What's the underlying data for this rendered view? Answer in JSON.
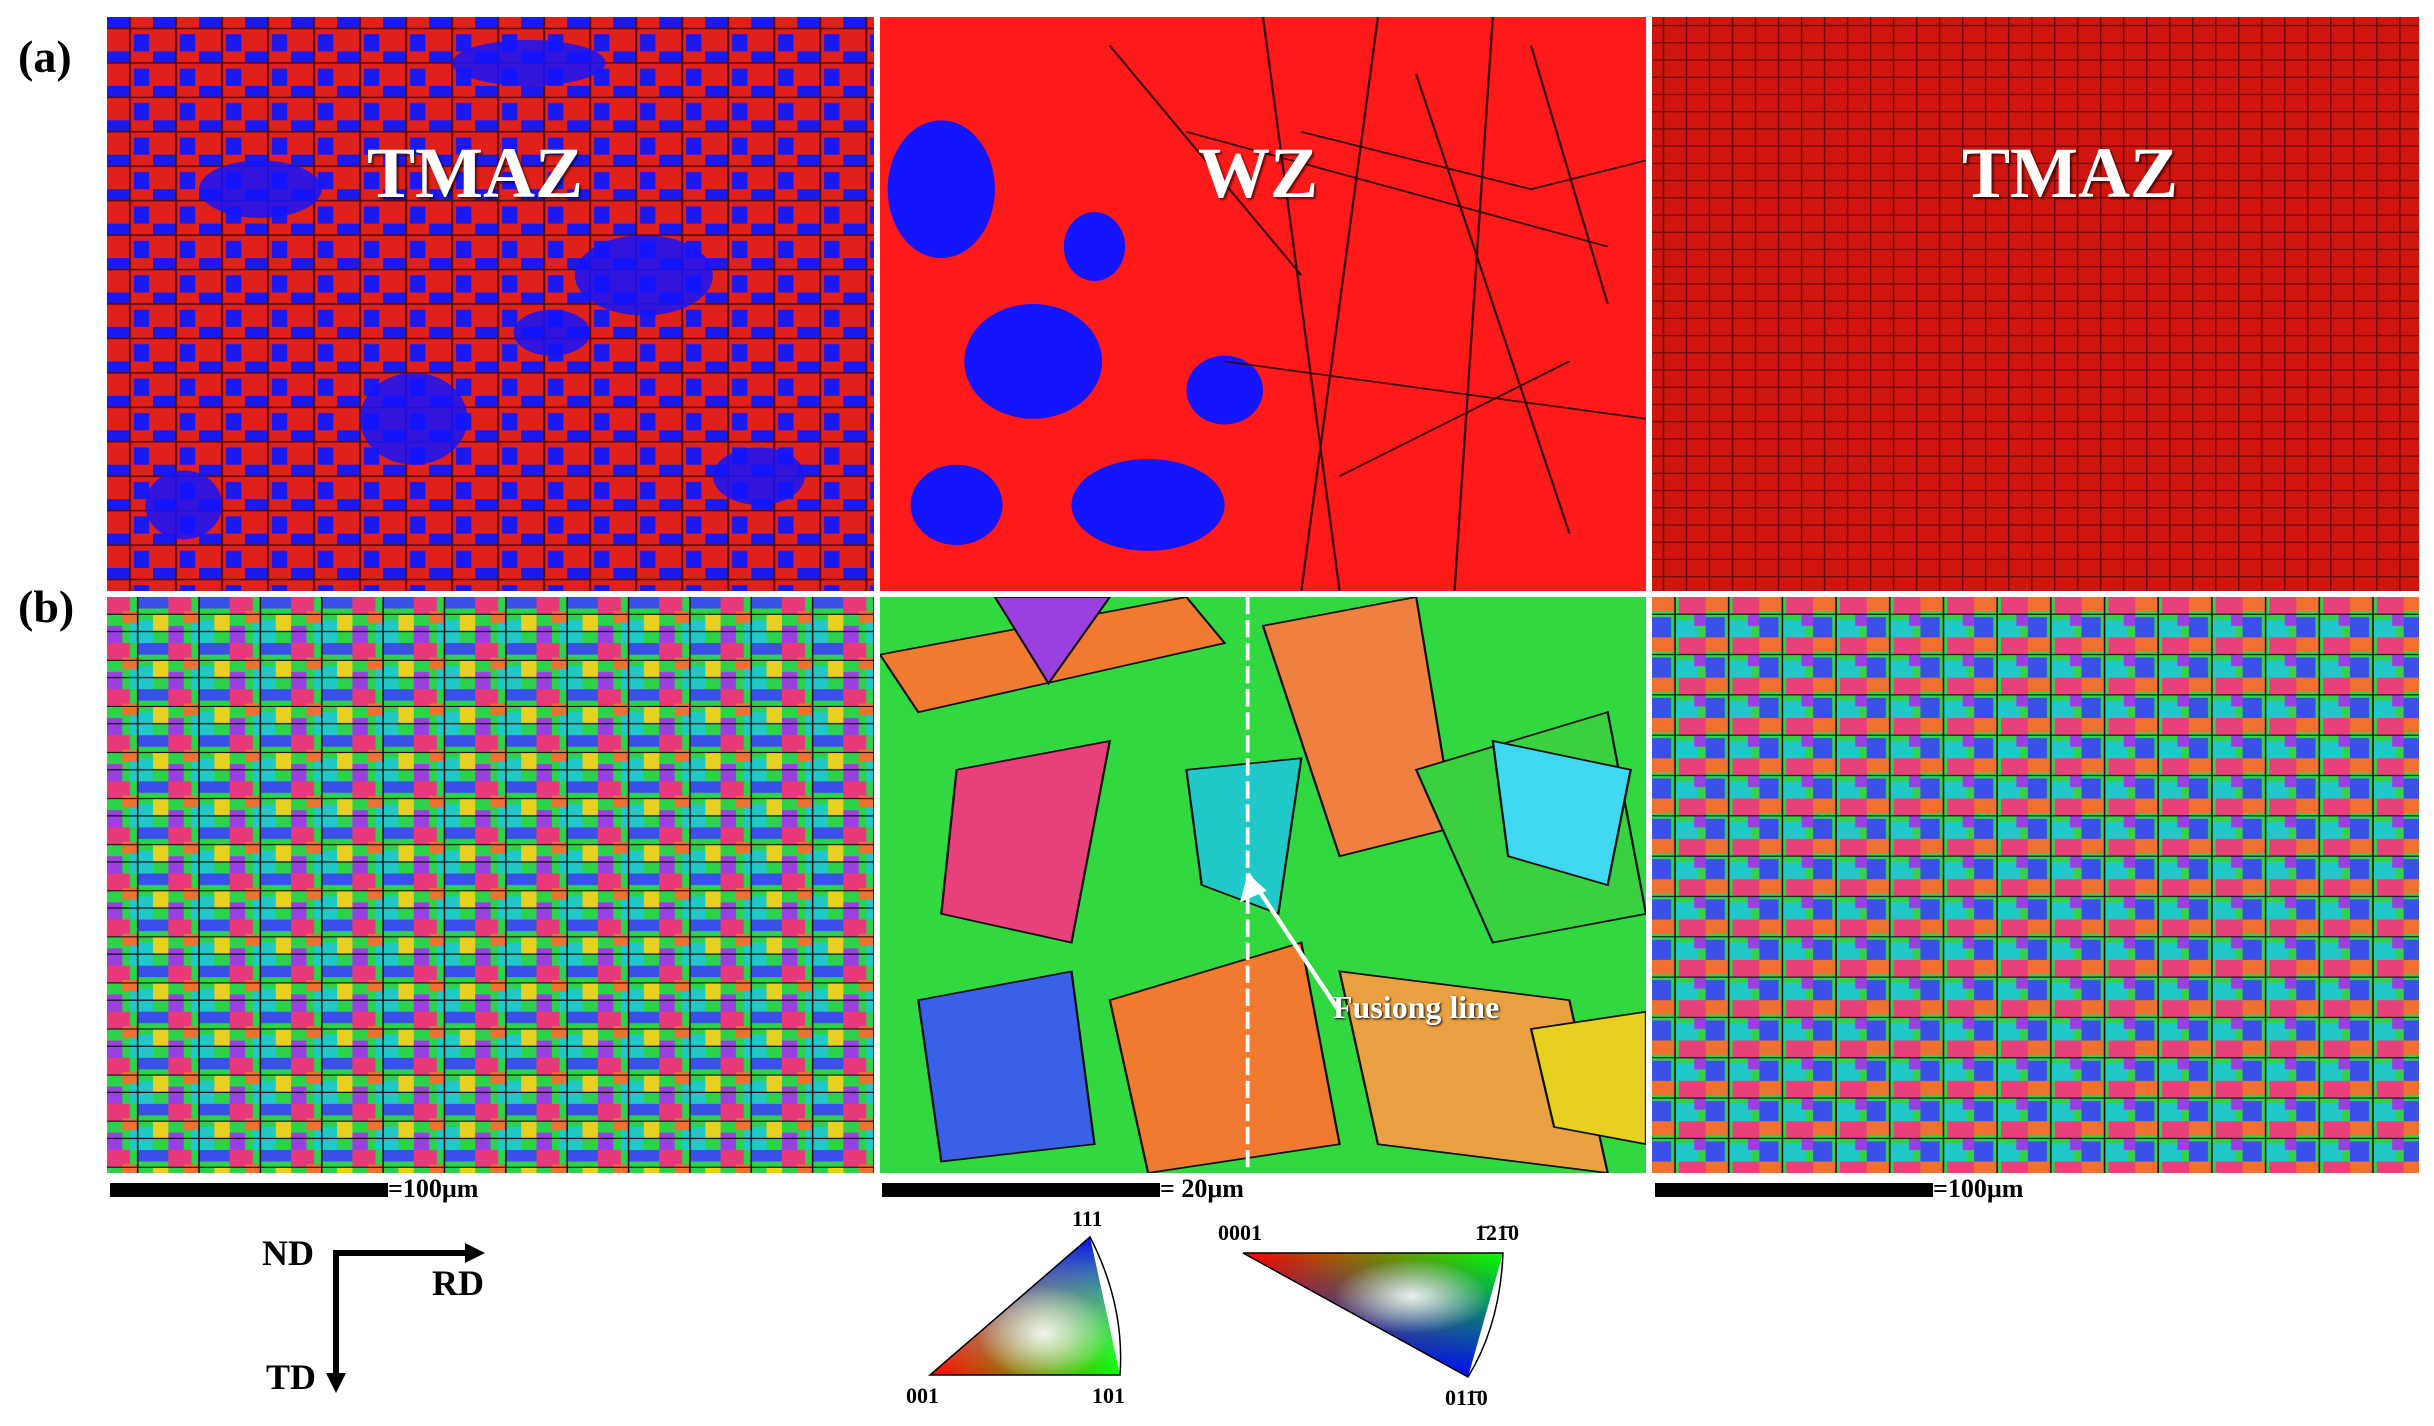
{
  "figure": {
    "row_labels": {
      "a": "(a)",
      "b": "(b)"
    },
    "zone_labels": {
      "left": "TMAZ",
      "middle": "WZ",
      "right": "TMAZ"
    },
    "fusion_line_label": "Fusiong line",
    "scale_bars": {
      "left": "=100µm",
      "middle": "= 20µm",
      "right": "=100µm"
    },
    "axes": {
      "nd": "ND",
      "rd": "RD",
      "td": "TD"
    },
    "ipf_cubic": {
      "top": "111",
      "left": "001",
      "right": "101"
    },
    "ipf_hex": {
      "left": "0001",
      "right": "1̄21̄0",
      "bottom": "011̄0"
    },
    "colors": {
      "phase_red": "#ff1a1a",
      "phase_red_dark": "#c9140f",
      "phase_blue": "#1414ff"
    }
  }
}
